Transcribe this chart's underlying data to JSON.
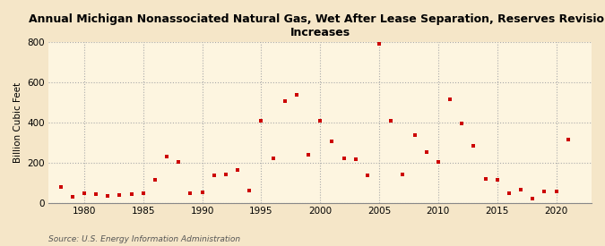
{
  "title": "Annual Michigan Nonassociated Natural Gas, Wet After Lease Separation, Reserves Revision\nIncreases",
  "ylabel": "Billion Cubic Feet",
  "source": "Source: U.S. Energy Information Administration",
  "background_color": "#f5e6c8",
  "plot_background_color": "#fdf5e0",
  "marker_color": "#cc0000",
  "years": [
    1978,
    1979,
    1980,
    1981,
    1982,
    1983,
    1984,
    1985,
    1986,
    1987,
    1988,
    1989,
    1990,
    1991,
    1992,
    1993,
    1994,
    1995,
    1996,
    1997,
    1998,
    1999,
    2000,
    2001,
    2002,
    2003,
    2004,
    2005,
    2006,
    2007,
    2008,
    2009,
    2010,
    2011,
    2012,
    2013,
    2014,
    2015,
    2016,
    2017,
    2018,
    2019,
    2020,
    2021
  ],
  "values": [
    80,
    28,
    48,
    42,
    32,
    38,
    42,
    48,
    112,
    228,
    205,
    45,
    50,
    135,
    140,
    165,
    60,
    410,
    220,
    505,
    535,
    240,
    410,
    305,
    220,
    215,
    135,
    790,
    410,
    140,
    335,
    250,
    205,
    515,
    395,
    285,
    120,
    115,
    48,
    65,
    22,
    58,
    58,
    315
  ],
  "xlim": [
    1977,
    2023
  ],
  "ylim": [
    0,
    800
  ],
  "yticks": [
    0,
    200,
    400,
    600,
    800
  ],
  "xticks": [
    1980,
    1985,
    1990,
    1995,
    2000,
    2005,
    2010,
    2015,
    2020
  ]
}
